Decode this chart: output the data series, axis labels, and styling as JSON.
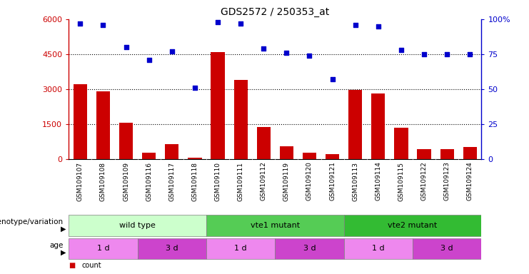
{
  "title": "GDS2572 / 250353_at",
  "samples": [
    "GSM109107",
    "GSM109108",
    "GSM109109",
    "GSM109116",
    "GSM109117",
    "GSM109118",
    "GSM109110",
    "GSM109111",
    "GSM109112",
    "GSM109119",
    "GSM109120",
    "GSM109121",
    "GSM109113",
    "GSM109114",
    "GSM109115",
    "GSM109122",
    "GSM109123",
    "GSM109124"
  ],
  "counts": [
    3200,
    2900,
    1550,
    280,
    650,
    50,
    4600,
    3400,
    1380,
    550,
    280,
    220,
    2950,
    2800,
    1350,
    430,
    430,
    500
  ],
  "percentiles": [
    97,
    96,
    80,
    71,
    77,
    51,
    98,
    97,
    79,
    76,
    74,
    57,
    96,
    95,
    78,
    75,
    75,
    75
  ],
  "bar_color": "#cc0000",
  "dot_color": "#0000cc",
  "left_yticks": [
    0,
    1500,
    3000,
    4500,
    6000
  ],
  "right_yticks": [
    0,
    25,
    50,
    75,
    100
  ],
  "ylim_left": [
    0,
    6000
  ],
  "ylim_right": [
    0,
    100
  ],
  "genotype_groups": [
    {
      "label": "wild type",
      "start": 0,
      "end": 6,
      "color": "#ccffcc"
    },
    {
      "label": "vte1 mutant",
      "start": 6,
      "end": 12,
      "color": "#55cc55"
    },
    {
      "label": "vte2 mutant",
      "start": 12,
      "end": 18,
      "color": "#33bb33"
    }
  ],
  "age_groups": [
    {
      "label": "1 d",
      "start": 0,
      "end": 3,
      "color": "#ee88ee"
    },
    {
      "label": "3 d",
      "start": 3,
      "end": 6,
      "color": "#cc44cc"
    },
    {
      "label": "1 d",
      "start": 6,
      "end": 9,
      "color": "#ee88ee"
    },
    {
      "label": "3 d",
      "start": 9,
      "end": 12,
      "color": "#cc44cc"
    },
    {
      "label": "1 d",
      "start": 12,
      "end": 15,
      "color": "#ee88ee"
    },
    {
      "label": "3 d",
      "start": 15,
      "end": 18,
      "color": "#cc44cc"
    }
  ],
  "legend_count_color": "#cc0000",
  "legend_dot_color": "#0000cc",
  "bg_color": "#ffffff",
  "genotype_row_label": "genotype/variation",
  "age_row_label": "age",
  "xtick_bg_color": "#dddddd",
  "grid_yticks": [
    1500,
    3000,
    4500
  ]
}
